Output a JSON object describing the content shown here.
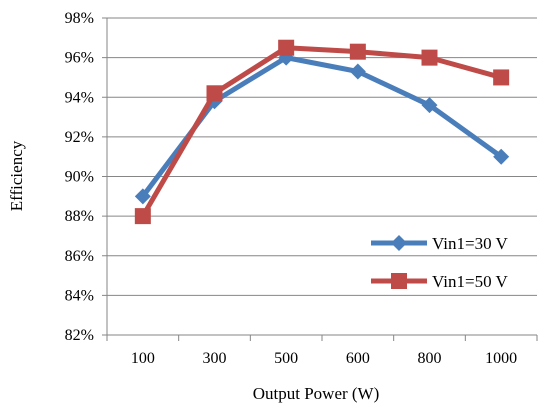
{
  "chart_data": {
    "type": "line",
    "title": "",
    "xlabel": "Output Power (W)",
    "ylabel": "Efficiency",
    "categories": [
      "100",
      "300",
      "500",
      "600",
      "800",
      "1000"
    ],
    "ylim": [
      82,
      98
    ],
    "yticks": [
      82,
      84,
      86,
      88,
      90,
      92,
      94,
      96,
      98
    ],
    "ytick_labels": [
      "82%",
      "84%",
      "86%",
      "88%",
      "90%",
      "92%",
      "94%",
      "96%",
      "98%"
    ],
    "grid": "horizontal",
    "legend_position": "bottom-right",
    "series": [
      {
        "name": "Vin1=30 V",
        "color": "#4a7ebb",
        "marker": "diamond",
        "values": [
          89.0,
          93.8,
          96.0,
          95.3,
          93.6,
          91.0
        ]
      },
      {
        "name": "Vin1=50 V",
        "color": "#be4b48",
        "marker": "square",
        "values": [
          88.0,
          94.2,
          96.5,
          96.3,
          96.0,
          95.0
        ]
      }
    ]
  }
}
